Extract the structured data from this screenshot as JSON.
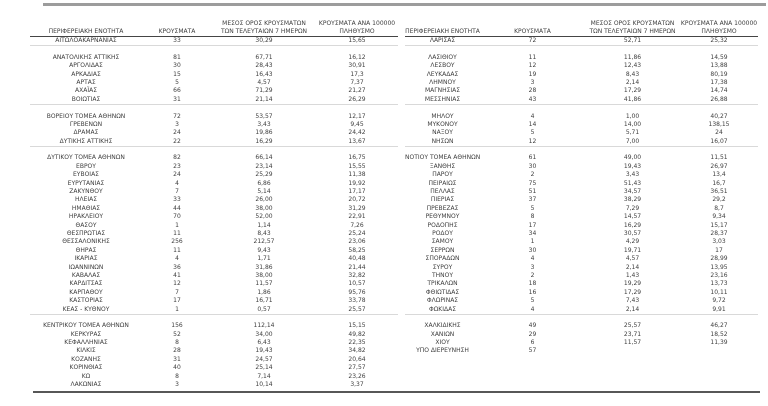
{
  "page": {
    "background": "#ffffff",
    "text_color": "#3d3d3d"
  },
  "rules": {
    "top_color": "#9c9c9c",
    "header_underline_color": "#454545",
    "group_separator_color": "#d9d9d9",
    "bottom_color": "#575757"
  },
  "columns": {
    "region": "ΠΕΡΙΦΕΡΕΙΑΚΗ ΕΝΟΤΗΤΑ",
    "cases": "ΚΡΟΥΣΜΑΤΑ",
    "avg7_line1": "ΜΕΣΟΣ ΟΡΟΣ ΚΡΟΥΣΜΑΤΩΝ",
    "avg7_line2": "ΤΩΝ ΤΕΛΕΥΤΑΙΩΝ 7 ΗΜΕΡΩΝ",
    "per100k_line1": "ΚΡΟΥΣΜΑΤΑ ΑΝΑ 100000",
    "per100k_line2": "ΠΛΗΘΥΣΜΟ"
  },
  "left_table": {
    "groups": [
      [
        [
          "ΑΙΤΩΛΟΑΚΑΡΝΑΝΙΑΣ",
          "33",
          "30,29",
          "15,65"
        ]
      ],
      [
        [
          "ΑΝΑΤΟΛΙΚΗΣ ΑΤΤΙΚΗΣ",
          "81",
          "67,71",
          "16,12"
        ],
        [
          "ΑΡΓΟΛΙΔΑΣ",
          "30",
          "28,43",
          "30,91"
        ],
        [
          "ΑΡΚΑΔΙΑΣ",
          "15",
          "16,43",
          "17,3"
        ],
        [
          "ΑΡΤΑΣ",
          "5",
          "4,57",
          "7,37"
        ],
        [
          "ΑΧΑΪΑΣ",
          "66",
          "71,29",
          "21,27"
        ],
        [
          "ΒΟΙΩΤΙΑΣ",
          "31",
          "21,14",
          "26,29"
        ]
      ],
      [
        [
          "ΒΟΡΕΙΟΥ ΤΟΜΕΑ ΑΘΗΝΩΝ",
          "72",
          "53,57",
          "12,17"
        ],
        [
          "ΓΡΕΒΕΝΩΝ",
          "3",
          "3,43",
          "9,45"
        ],
        [
          "ΔΡΑΜΑΣ",
          "24",
          "19,86",
          "24,42"
        ],
        [
          "ΔΥΤΙΚΗΣ ΑΤΤΙΚΗΣ",
          "22",
          "16,29",
          "13,67"
        ]
      ],
      [
        [
          "ΔΥΤΙΚΟΥ ΤΟΜΕΑ ΑΘΗΝΩΝ",
          "82",
          "66,14",
          "16,75"
        ],
        [
          "ΕΒΡΟΥ",
          "23",
          "23,14",
          "15,55"
        ],
        [
          "ΕΥΒΟΙΑΣ",
          "24",
          "25,29",
          "11,38"
        ],
        [
          "ΕΥΡΥΤΑΝΙΑΣ",
          "4",
          "6,86",
          "19,92"
        ],
        [
          "ΖΑΚΥΝΘΟΥ",
          "7",
          "5,14",
          "17,17"
        ],
        [
          "ΗΛΕΙΑΣ",
          "33",
          "26,00",
          "20,72"
        ],
        [
          "ΗΜΑΘΙΑΣ",
          "44",
          "38,00",
          "31,29"
        ],
        [
          "ΗΡΑΚΛΕΙΟΥ",
          "70",
          "52,00",
          "22,91"
        ],
        [
          "ΘΑΣΟΥ",
          "1",
          "1,14",
          "7,26"
        ],
        [
          "ΘΕΣΠΡΩΤΙΑΣ",
          "11",
          "8,43",
          "25,24"
        ],
        [
          "ΘΕΣΣΑΛΟΝΙΚΗΣ",
          "256",
          "212,57",
          "23,06"
        ],
        [
          "ΘΗΡΑΣ",
          "11",
          "9,43",
          "58,25"
        ],
        [
          "ΙΚΑΡΙΑΣ",
          "4",
          "1,71",
          "40,48"
        ],
        [
          "ΙΩΑΝΝΙΝΩΝ",
          "36",
          "31,86",
          "21,44"
        ],
        [
          "ΚΑΒΑΛΑΣ",
          "41",
          "38,00",
          "32,82"
        ],
        [
          "ΚΑΡΔΙΤΣΑΣ",
          "12",
          "11,57",
          "10,57"
        ],
        [
          "ΚΑΡΠΑΘΟΥ",
          "7",
          "1,86",
          "95,76"
        ],
        [
          "ΚΑΣΤΟΡΙΑΣ",
          "17",
          "16,71",
          "33,78"
        ],
        [
          "ΚΕΑΣ - ΚΥΘΝΟΥ",
          "1",
          "0,57",
          "25,57"
        ]
      ],
      [
        [
          "ΚΕΝΤΡΙΚΟΥ ΤΟΜΕΑ ΑΘΗΝΩΝ",
          "156",
          "112,14",
          "15,15"
        ],
        [
          "ΚΕΡΚΥΡΑΣ",
          "52",
          "34,00",
          "49,82"
        ],
        [
          "ΚΕΦΑΛΛΗΝΙΑΣ",
          "8",
          "6,43",
          "22,35"
        ],
        [
          "ΚΙΛΚΙΣ",
          "28",
          "19,43",
          "34,82"
        ],
        [
          "ΚΟΖΑΝΗΣ",
          "31",
          "24,57",
          "20,64"
        ],
        [
          "ΚΟΡΙΝΘΙΑΣ",
          "40",
          "25,14",
          "27,57"
        ],
        [
          "ΚΩ",
          "8",
          "7,14",
          "23,26"
        ],
        [
          "ΛΑΚΩΝΙΑΣ",
          "3",
          "10,14",
          "3,37"
        ]
      ]
    ]
  },
  "right_table": {
    "groups": [
      [
        [
          "ΛΑΡΙΣΑΣ",
          "72",
          "52,71",
          "25,32"
        ]
      ],
      [
        [
          "ΛΑΣΙΘΙΟΥ",
          "11",
          "11,86",
          "14,59"
        ],
        [
          "ΛΕΣΒΟΥ",
          "12",
          "12,43",
          "13,88"
        ],
        [
          "ΛΕΥΚΑΔΑΣ",
          "19",
          "8,43",
          "80,19"
        ],
        [
          "ΛΗΜΝΟΥ",
          "3",
          "2,14",
          "17,38"
        ],
        [
          "ΜΑΓΝΗΣΙΑΣ",
          "28",
          "17,29",
          "14,74"
        ],
        [
          "ΜΕΣΣΗΝΙΑΣ",
          "43",
          "41,86",
          "26,88"
        ]
      ],
      [
        [
          "ΜΗΛΟΥ",
          "4",
          "1,00",
          "40,27"
        ],
        [
          "ΜΥΚΟΝΟΥ",
          "14",
          "14,00",
          "138,15"
        ],
        [
          "ΝΑΞΟΥ",
          "5",
          "5,71",
          "24"
        ],
        [
          "ΝΗΣΩΝ",
          "12",
          "7,00",
          "16,07"
        ]
      ],
      [
        [
          "ΝΟΤΙΟΥ ΤΟΜΕΑ ΑΘΗΝΩΝ",
          "61",
          "49,00",
          "11,51"
        ],
        [
          "ΞΑΝΘΗΣ",
          "30",
          "19,43",
          "26,97"
        ],
        [
          "ΠΑΡΟΥ",
          "2",
          "3,43",
          "13,4"
        ],
        [
          "ΠΕΙΡΑΙΩΣ",
          "75",
          "51,43",
          "16,7"
        ],
        [
          "ΠΕΛΛΑΣ",
          "51",
          "34,57",
          "36,51"
        ],
        [
          "ΠΙΕΡΙΑΣ",
          "37",
          "38,29",
          "29,2"
        ],
        [
          "ΠΡΕΒΕΖΑΣ",
          "5",
          "7,29",
          "8,7"
        ],
        [
          "ΡΕΘΥΜΝΟΥ",
          "8",
          "14,57",
          "9,34"
        ],
        [
          "ΡΟΔΟΠΗΣ",
          "17",
          "16,29",
          "15,17"
        ],
        [
          "ΡΟΔΟΥ",
          "34",
          "30,57",
          "28,37"
        ],
        [
          "ΣΑΜΟΥ",
          "1",
          "4,29",
          "3,03"
        ],
        [
          "ΣΕΡΡΩΝ",
          "30",
          "19,71",
          "17"
        ],
        [
          "ΣΠΟΡΑΔΩΝ",
          "4",
          "4,57",
          "28,99"
        ],
        [
          "ΣΥΡΟΥ",
          "3",
          "2,14",
          "13,95"
        ],
        [
          "ΤΗΝΟΥ",
          "2",
          "1,43",
          "23,16"
        ],
        [
          "ΤΡΙΚΑΛΩΝ",
          "18",
          "19,29",
          "13,73"
        ],
        [
          "ΦΘΙΩΤΙΔΑΣ",
          "16",
          "17,29",
          "10,11"
        ],
        [
          "ΦΛΩΡΙΝΑΣ",
          "5",
          "7,43",
          "9,72"
        ],
        [
          "ΦΩΚΙΔΑΣ",
          "4",
          "2,14",
          "9,91"
        ]
      ],
      [
        [
          "ΧΑΛΚΙΔΙΚΗΣ",
          "49",
          "25,57",
          "46,27"
        ],
        [
          "ΧΑΝΙΩΝ",
          "29",
          "23,71",
          "18,52"
        ],
        [
          "ΧΙΟΥ",
          "6",
          "11,57",
          "11,39"
        ],
        [
          "ΥΠΟ ΔΙΕΡΕΥΝΗΣΗ",
          "57",
          "",
          ""
        ]
      ]
    ]
  }
}
